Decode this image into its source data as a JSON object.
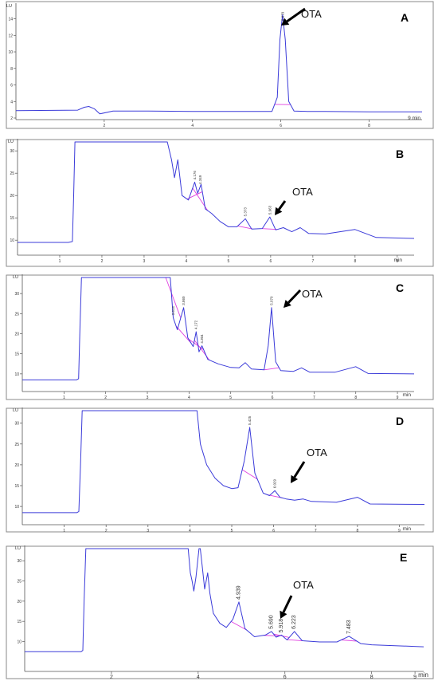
{
  "figure": {
    "panels": [
      {
        "panel_label": "A",
        "y_unit": "LU",
        "x_unit": "9 min",
        "annotation": "OTA",
        "y_ticks": [
          2,
          4,
          6,
          8,
          10,
          12,
          14
        ],
        "x_ticks": [
          2,
          4,
          6,
          8
        ],
        "peak_labels": [
          {
            "text": "5.879",
            "x": 6.04
          }
        ],
        "colors": {
          "trace": "#3b3bd9",
          "baseline": "#e040e0",
          "frame": "#8a8a8a"
        },
        "chart_data": {
          "type": "line",
          "title": "",
          "xlabel": "9 min",
          "ylabel": "LU",
          "xlim": [
            0,
            9.2
          ],
          "ylim": [
            2,
            15.5
          ],
          "grid": false,
          "x": [
            0,
            1.4,
            1.55,
            1.65,
            1.78,
            1.9,
            2.2,
            3,
            4,
            5,
            5.8,
            5.92,
            5.98,
            6.04,
            6.1,
            6.18,
            6.3,
            6.6,
            7,
            8,
            9.2
          ],
          "y": [
            2.9,
            2.95,
            3.3,
            3.4,
            3.1,
            2.5,
            2.85,
            2.85,
            2.8,
            2.8,
            2.8,
            4.5,
            11.5,
            14.5,
            11.5,
            4.0,
            2.85,
            2.8,
            2.8,
            2.75,
            2.75
          ]
        }
      },
      {
        "panel_label": "B",
        "y_unit": "LU",
        "x_unit": "min",
        "annotation": "OTA",
        "y_ticks": [
          10,
          15,
          20,
          25,
          30
        ],
        "x_ticks": [
          1,
          2,
          3,
          4,
          5,
          6,
          7,
          8,
          9
        ],
        "peak_labels": [
          {
            "text": "4.176",
            "x": 4.2
          },
          {
            "text": "4.349",
            "x": 4.33
          },
          {
            "text": "5.373",
            "x": 5.4
          },
          {
            "text": "5.963",
            "x": 5.98
          }
        ],
        "colors": {
          "trace": "#3b3bd9",
          "baseline": "#e040e0",
          "frame": "#8a8a8a"
        },
        "chart_data": {
          "type": "line",
          "title": "",
          "xlabel": "min",
          "ylabel": "LU",
          "xlim": [
            0,
            9.4
          ],
          "ylim": [
            7,
            32
          ],
          "grid": false,
          "x": [
            0,
            1.2,
            1.3,
            1.33,
            1.36,
            3.55,
            3.65,
            3.72,
            3.8,
            3.9,
            4.05,
            4.2,
            4.27,
            4.35,
            4.45,
            4.6,
            4.8,
            5.0,
            5.2,
            5.4,
            5.55,
            5.8,
            5.98,
            6.12,
            6.3,
            6.5,
            6.7,
            6.9,
            7.3,
            8.0,
            8.5,
            9.4
          ],
          "y": [
            9.5,
            9.5,
            9.7,
            20,
            32,
            32,
            28,
            24,
            28,
            20,
            19,
            23,
            20.5,
            22.5,
            17,
            16,
            14.2,
            13,
            13,
            14.8,
            12.5,
            12.6,
            15.2,
            12.3,
            12.8,
            11.9,
            12.8,
            11.5,
            11.4,
            12.4,
            10.6,
            10.4
          ]
        }
      },
      {
        "panel_label": "C",
        "y_unit": "LU",
        "x_unit": "min",
        "annotation": "OTA",
        "y_ticks": [
          10,
          15,
          20,
          25,
          30
        ],
        "x_ticks": [
          1,
          2,
          3,
          4,
          5,
          6,
          7,
          8,
          9
        ],
        "peak_labels": [
          {
            "text": "3.614",
            "x": 3.62
          },
          {
            "text": "3.860",
            "x": 3.87
          },
          {
            "text": "4.172",
            "x": 4.17
          },
          {
            "text": "4.304",
            "x": 4.31
          },
          {
            "text": "5.979",
            "x": 5.98
          }
        ],
        "colors": {
          "trace": "#3b3bd9",
          "baseline": "#e040e0",
          "frame": "#8a8a8a"
        },
        "chart_data": {
          "type": "line",
          "title": "",
          "xlabel": "min",
          "ylabel": "LU",
          "xlim": [
            0,
            9.4
          ],
          "ylim": [
            6,
            34
          ],
          "grid": false,
          "x": [
            0,
            1.3,
            1.35,
            1.38,
            1.42,
            3.55,
            3.62,
            3.72,
            3.87,
            3.97,
            4.1,
            4.17,
            4.24,
            4.31,
            4.45,
            4.7,
            5.0,
            5.2,
            5.35,
            5.5,
            5.8,
            5.9,
            5.98,
            6.08,
            6.2,
            6.5,
            6.7,
            6.9,
            7.5,
            8.0,
            8.3,
            9.4
          ],
          "y": [
            8.5,
            8.5,
            8.8,
            20,
            34,
            34,
            24,
            21,
            26.5,
            19,
            16.8,
            20.5,
            15.5,
            17,
            13.6,
            12.5,
            11.6,
            11.5,
            12.8,
            11.2,
            11,
            17,
            26.5,
            13,
            10.8,
            10.6,
            11.5,
            10.4,
            10.4,
            11.8,
            10.1,
            10
          ]
        }
      },
      {
        "panel_label": "D",
        "y_unit": "LU",
        "x_unit": "min",
        "annotation": "OTA",
        "y_ticks": [
          10,
          15,
          20,
          25,
          30
        ],
        "x_ticks": [
          1,
          2,
          3,
          4,
          5,
          6,
          7,
          8,
          9
        ],
        "peak_labels": [
          {
            "text": "5.425",
            "x": 5.43
          },
          {
            "text": "6.029",
            "x": 6.03
          }
        ],
        "colors": {
          "trace": "#3b3bd9",
          "baseline": "#e040e0",
          "frame": "#8a8a8a"
        },
        "chart_data": {
          "type": "line",
          "title": "",
          "xlabel": "min",
          "ylabel": "LU",
          "xlim": [
            0,
            9.6
          ],
          "ylim": [
            6,
            33
          ],
          "grid": false,
          "x": [
            0,
            1.3,
            1.35,
            1.39,
            1.43,
            4.17,
            4.25,
            4.4,
            4.6,
            4.8,
            5.0,
            5.15,
            5.3,
            5.43,
            5.55,
            5.75,
            5.9,
            6.03,
            6.15,
            6.3,
            6.5,
            6.7,
            6.9,
            7.5,
            8.0,
            8.3,
            9.6
          ],
          "y": [
            8.5,
            8.5,
            8.8,
            20,
            33,
            33,
            25,
            20,
            16.8,
            15,
            14.3,
            14.5,
            21,
            29,
            18,
            13.2,
            12.6,
            13.8,
            12.2,
            11.8,
            11.5,
            11.8,
            11.2,
            11,
            12.2,
            10.6,
            10.5
          ]
        }
      },
      {
        "panel_label": "E",
        "y_unit": "LU",
        "x_unit": "min",
        "annotation": "OTA",
        "y_ticks": [
          10,
          15,
          20,
          25,
          30
        ],
        "x_ticks": [
          2,
          4,
          6,
          8,
          9
        ],
        "peak_labels": [
          {
            "text": "4.939",
            "x": 4.94
          },
          {
            "text": "5.690",
            "x": 5.69
          },
          {
            "text": "5.918",
            "x": 5.92
          },
          {
            "text": "6.223",
            "x": 6.22
          },
          {
            "text": "7.483",
            "x": 7.48
          }
        ],
        "colors": {
          "trace": "#3b3bd9",
          "baseline": "#e040e0",
          "frame": "#8a8a8a"
        },
        "chart_data": {
          "type": "line",
          "title": "",
          "xlabel": "min",
          "ylabel": "LU",
          "xlim": [
            0,
            9.2
          ],
          "ylim": [
            3,
            33
          ],
          "grid": false,
          "x": [
            0,
            1.3,
            1.34,
            1.37,
            1.41,
            3.77,
            3.82,
            3.86,
            3.9,
            3.95,
            4.02,
            4.05,
            4.1,
            4.15,
            4.22,
            4.27,
            4.35,
            4.5,
            4.65,
            4.8,
            4.94,
            5.08,
            5.3,
            5.55,
            5.69,
            5.8,
            5.92,
            6.05,
            6.22,
            6.4,
            6.8,
            7.2,
            7.48,
            7.75,
            8.0,
            9.2
          ],
          "y": [
            7.5,
            7.5,
            7.8,
            20,
            33,
            33,
            27,
            25,
            22.5,
            26,
            33,
            33,
            28,
            23,
            27,
            22,
            17,
            14.5,
            13.5,
            15.5,
            19.8,
            13.2,
            11.2,
            11.6,
            12.5,
            11.1,
            11.6,
            10.4,
            12.5,
            10.2,
            9.9,
            9.9,
            11.3,
            9.5,
            9.2,
            8.7
          ]
        }
      }
    ]
  }
}
